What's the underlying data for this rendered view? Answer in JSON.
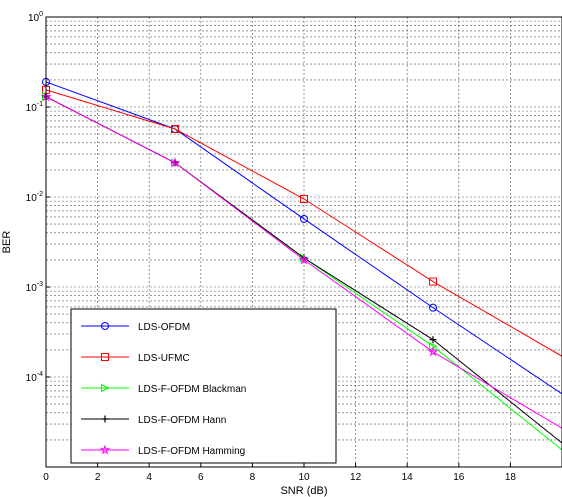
{
  "chart_data": {
    "type": "line",
    "xlabel": "SNR (dB)",
    "ylabel": "BER",
    "xlim": [
      0,
      20
    ],
    "ylim": [
      1e-05,
      1
    ],
    "y_scale": "log",
    "grid": true,
    "x_ticks": [
      0,
      2,
      4,
      6,
      8,
      10,
      12,
      14,
      16,
      18
    ],
    "y_ticks": [
      {
        "value": 1,
        "base": "10",
        "exp": "0"
      },
      {
        "value": 0.1,
        "base": "10",
        "exp": "-1"
      },
      {
        "value": 0.01,
        "base": "10",
        "exp": "-2"
      },
      {
        "value": 0.001,
        "base": "10",
        "exp": "-3"
      },
      {
        "value": 0.0001,
        "base": "10",
        "exp": "-4"
      }
    ],
    "legend_position": "bottom-left",
    "series": [
      {
        "name": "LDS-OFDM",
        "color": "#0000ff",
        "marker": "circle",
        "x": [
          0,
          5,
          10,
          15,
          20
        ],
        "y": [
          0.19,
          0.057,
          0.0057,
          0.00059,
          6.5e-05
        ]
      },
      {
        "name": "LDS-UFMC",
        "color": "#ff0000",
        "marker": "square",
        "x": [
          0,
          5,
          10,
          15,
          20
        ],
        "y": [
          0.155,
          0.057,
          0.0095,
          0.00115,
          0.00017
        ]
      },
      {
        "name": "LDS-F-OFDM Blackman",
        "color": "#00ff00",
        "marker": "triangle-right",
        "x": [
          0,
          5,
          10,
          15,
          20
        ],
        "y": [
          0.13,
          0.024,
          0.0021,
          0.00022,
          1.55e-05
        ]
      },
      {
        "name": "LDS-F-OFDM Hann",
        "color": "#000000",
        "marker": "plus",
        "x": [
          0,
          5,
          10,
          15,
          20
        ],
        "y": [
          0.13,
          0.024,
          0.0021,
          0.00026,
          1.85e-05
        ]
      },
      {
        "name": "LDS-F-OFDM Hamming",
        "color": "#ff00ff",
        "marker": "star",
        "x": [
          0,
          5,
          10,
          15,
          20
        ],
        "y": [
          0.13,
          0.024,
          0.002,
          0.00019,
          2.7e-05
        ]
      }
    ]
  }
}
